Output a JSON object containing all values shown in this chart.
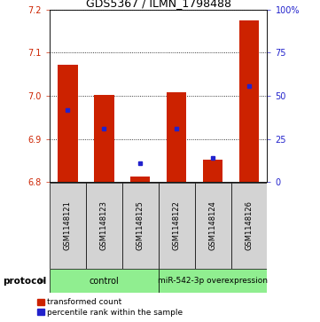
{
  "title": "GDS5367 / ILMN_1798488",
  "samples": [
    "GSM1148121",
    "GSM1148123",
    "GSM1148125",
    "GSM1148122",
    "GSM1148124",
    "GSM1148126"
  ],
  "red_values": [
    7.073,
    7.002,
    6.812,
    7.008,
    6.851,
    7.175
  ],
  "blue_values": [
    6.968,
    6.924,
    6.843,
    6.924,
    6.856,
    7.022
  ],
  "base_value": 6.8,
  "ylim": [
    6.8,
    7.2
  ],
  "yticks": [
    6.8,
    6.9,
    7.0,
    7.1,
    7.2
  ],
  "right_yticks": [
    0,
    25,
    50,
    75,
    100
  ],
  "right_ylabels": [
    "0",
    "25",
    "50",
    "75",
    "100%"
  ],
  "group_labels": [
    "control",
    "miR-542-3p overexpression"
  ],
  "group_colors": [
    "#90ee90",
    "#90ee90"
  ],
  "bar_color": "#cc2200",
  "blue_color": "#2222cc",
  "bar_width": 0.55,
  "protocol_label": "protocol",
  "legend_red": "transformed count",
  "legend_blue": "percentile rank within the sample",
  "left_axis_color": "#cc2200",
  "right_axis_color": "#2222cc",
  "title_fontsize": 9,
  "tick_fontsize": 7,
  "sample_fontsize": 6,
  "group_fontsize": 7,
  "legend_fontsize": 6.5
}
